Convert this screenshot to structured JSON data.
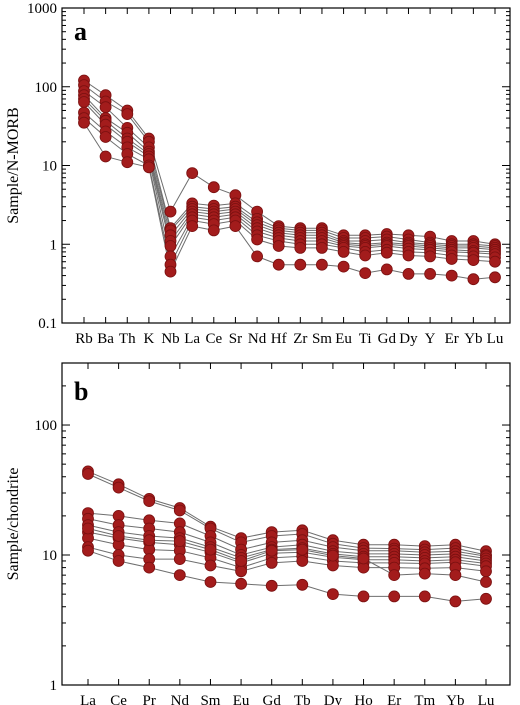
{
  "colors": {
    "marker": "#a31c1c",
    "marker_edge": "#7a1010",
    "line": "#6e6e6e"
  },
  "chart_data": [
    {
      "type": "line",
      "panel_label": "a",
      "ylabel": "Sample/N-MORB",
      "yscale": "log",
      "ylim": [
        0.1,
        1000
      ],
      "yticks": [
        0.1,
        1,
        10,
        100,
        1000
      ],
      "yticklabels": [
        "0.1",
        "1",
        "10",
        "100",
        "1000"
      ],
      "categories": [
        "Rb",
        "Ba",
        "Th",
        "K",
        "Nb",
        "La",
        "Ce",
        "Sr",
        "Nd",
        "Hf",
        "Zr",
        "Sm",
        "Eu",
        "Ti",
        "Gd",
        "Dy",
        "Y",
        "Er",
        "Yb",
        "Lu"
      ],
      "series": [
        {
          "values": [
            120,
            78,
            50,
            22,
            2.6,
            8,
            5.3,
            4.2,
            2.6,
            1.7,
            1.6,
            1.6,
            1.3,
            1.3,
            1.35,
            1.3,
            1.25,
            1.1,
            1.1,
            1.0
          ]
        },
        {
          "values": [
            105,
            65,
            45,
            20,
            1.6,
            3.3,
            3.1,
            3.3,
            2.1,
            1.6,
            1.5,
            1.5,
            1.2,
            1.2,
            1.25,
            1.15,
            1.05,
            1.0,
            1.0,
            0.95
          ]
        },
        {
          "values": [
            88,
            55,
            30,
            17,
            1.5,
            3.0,
            2.8,
            3.0,
            1.9,
            1.5,
            1.4,
            1.4,
            1.1,
            1.1,
            1.15,
            1.05,
            1.0,
            0.95,
            0.95,
            0.9
          ]
        },
        {
          "values": [
            78,
            40,
            26,
            15,
            1.3,
            2.8,
            2.6,
            2.8,
            1.75,
            1.4,
            1.3,
            1.3,
            1.05,
            1.0,
            1.05,
            1.0,
            0.95,
            0.9,
            0.9,
            0.85
          ]
        },
        {
          "values": [
            70,
            37,
            22,
            14,
            1.1,
            2.6,
            2.4,
            2.6,
            1.6,
            1.3,
            1.2,
            1.2,
            1.0,
            0.95,
            1.0,
            0.95,
            0.9,
            0.85,
            0.82,
            0.8
          ]
        },
        {
          "values": [
            64,
            33,
            20,
            13,
            0.95,
            2.4,
            2.2,
            2.4,
            1.45,
            1.2,
            1.1,
            1.1,
            0.95,
            0.9,
            0.95,
            0.88,
            0.85,
            0.8,
            0.78,
            0.75
          ]
        },
        {
          "values": [
            47,
            27,
            17,
            12,
            0.7,
            2.2,
            2.0,
            2.2,
            1.3,
            1.1,
            1.0,
            1.0,
            0.9,
            0.8,
            0.85,
            0.8,
            0.78,
            0.72,
            0.7,
            0.68
          ]
        },
        {
          "values": [
            40,
            23,
            14,
            10,
            0.55,
            2.0,
            1.8,
            2.0,
            1.15,
            0.95,
            0.9,
            0.9,
            0.8,
            0.72,
            0.78,
            0.72,
            0.7,
            0.65,
            0.63,
            0.6
          ]
        },
        {
          "values": [
            35,
            13,
            11,
            9.5,
            0.45,
            1.7,
            1.5,
            1.7,
            0.7,
            0.55,
            0.55,
            0.55,
            0.52,
            0.43,
            0.48,
            0.42,
            0.42,
            0.4,
            0.36,
            0.38
          ]
        }
      ]
    },
    {
      "type": "line",
      "panel_label": "b",
      "ylabel": "Sample/chondrite",
      "yscale": "log",
      "ylim": [
        1,
        300
      ],
      "yticks": [
        1,
        10,
        100
      ],
      "yticklabels": [
        "1",
        "10",
        "100"
      ],
      "categories": [
        "La",
        "Ce",
        "Pr",
        "Nd",
        "Sm",
        "Eu",
        "Gd",
        "Tb",
        "Dy",
        "Ho",
        "Er",
        "Tm",
        "Yb",
        "Lu"
      ],
      "series": [
        {
          "values": [
            44,
            35,
            27,
            23,
            16.5,
            13.5,
            15,
            15.5,
            13,
            12,
            12,
            11.7,
            12,
            10.7
          ]
        },
        {
          "values": [
            42,
            33,
            26,
            22,
            16,
            12.5,
            14,
            14.5,
            12.2,
            11.3,
            11.2,
            11,
            11.3,
            10
          ]
        },
        {
          "values": [
            21,
            20,
            18.5,
            17.5,
            14,
            11,
            12.5,
            13,
            11.5,
            10.8,
            10.8,
            10.5,
            10.7,
            9.8
          ]
        },
        {
          "values": [
            19,
            17,
            16,
            15,
            12.5,
            10,
            11.5,
            12,
            10.7,
            10.2,
            10.2,
            10,
            10.2,
            9.4
          ]
        },
        {
          "values": [
            17,
            15,
            14,
            13.5,
            11.5,
            9.5,
            11,
            11.3,
            10.2,
            9.7,
            9.7,
            9.5,
            9.7,
            9.0
          ]
        },
        {
          "values": [
            15,
            13.5,
            12.5,
            12,
            10.5,
            8.7,
            10.3,
            10.5,
            9.6,
            9.2,
            9.2,
            9.0,
            9.2,
            8.6
          ]
        },
        {
          "values": [
            13.5,
            12,
            11,
            10.8,
            9.5,
            8.0,
            9.5,
            9.8,
            9.0,
            8.7,
            8.7,
            8.6,
            8.8,
            8.2
          ]
        },
        {
          "values": [
            11.5,
            10,
            9.3,
            9.3,
            8.3,
            7.5,
            8.7,
            9.0,
            8.3,
            8.0,
            8.0,
            7.9,
            8.0,
            7.5
          ]
        },
        {
          "values": [
            10.8,
            9.0,
            8.0,
            7.0,
            6.2,
            6.0,
            5.8,
            5.9,
            5.0,
            4.8,
            4.8,
            4.8,
            4.4,
            4.6
          ]
        },
        {
          "values": [
            16,
            14,
            13,
            12.8,
            11,
            9.0,
            10.8,
            11,
            9.9,
            9.4,
            7.0,
            7.2,
            7.0,
            6.2
          ]
        }
      ]
    }
  ]
}
